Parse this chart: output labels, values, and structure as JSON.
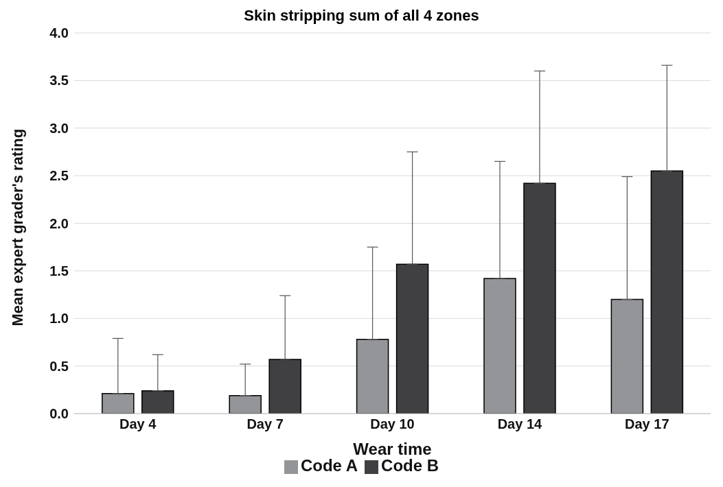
{
  "chart_data": {
    "type": "bar",
    "title": "Skin stripping sum of all 4 zones",
    "xlabel": "Wear time",
    "ylabel": "Mean expert grader's rating",
    "categories": [
      "Day 4",
      "Day 7",
      "Day 10",
      "Day 14",
      "Day 17"
    ],
    "series": [
      {
        "name": "Code A",
        "color": "#939598",
        "values": [
          0.21,
          0.19,
          0.78,
          1.42,
          1.2
        ],
        "errors": [
          [
            0.21,
            0.79
          ],
          [
            0.19,
            0.52
          ],
          [
            0.78,
            1.75
          ],
          [
            1.42,
            2.65
          ],
          [
            1.2,
            2.49
          ]
        ]
      },
      {
        "name": "Code B",
        "color": "#404042",
        "values": [
          0.24,
          0.57,
          1.57,
          2.42,
          2.55
        ],
        "errors": [
          [
            0.24,
            0.62
          ],
          [
            0.57,
            1.24
          ],
          [
            1.57,
            2.75
          ],
          [
            2.42,
            3.6
          ],
          [
            2.55,
            3.66
          ]
        ]
      }
    ],
    "ylim": [
      0,
      4
    ],
    "yticks": [
      {
        "value": 0,
        "label": "0.0"
      },
      0.5,
      {
        "value": 1,
        "label": "1.0"
      },
      1.5,
      {
        "value": 2,
        "label": "2.0"
      },
      2.5,
      {
        "value": 3,
        "label": "3.0"
      },
      3.5,
      {
        "value": 4,
        "label": "4.0"
      }
    ],
    "grid": "y",
    "legend": "bottom"
  }
}
